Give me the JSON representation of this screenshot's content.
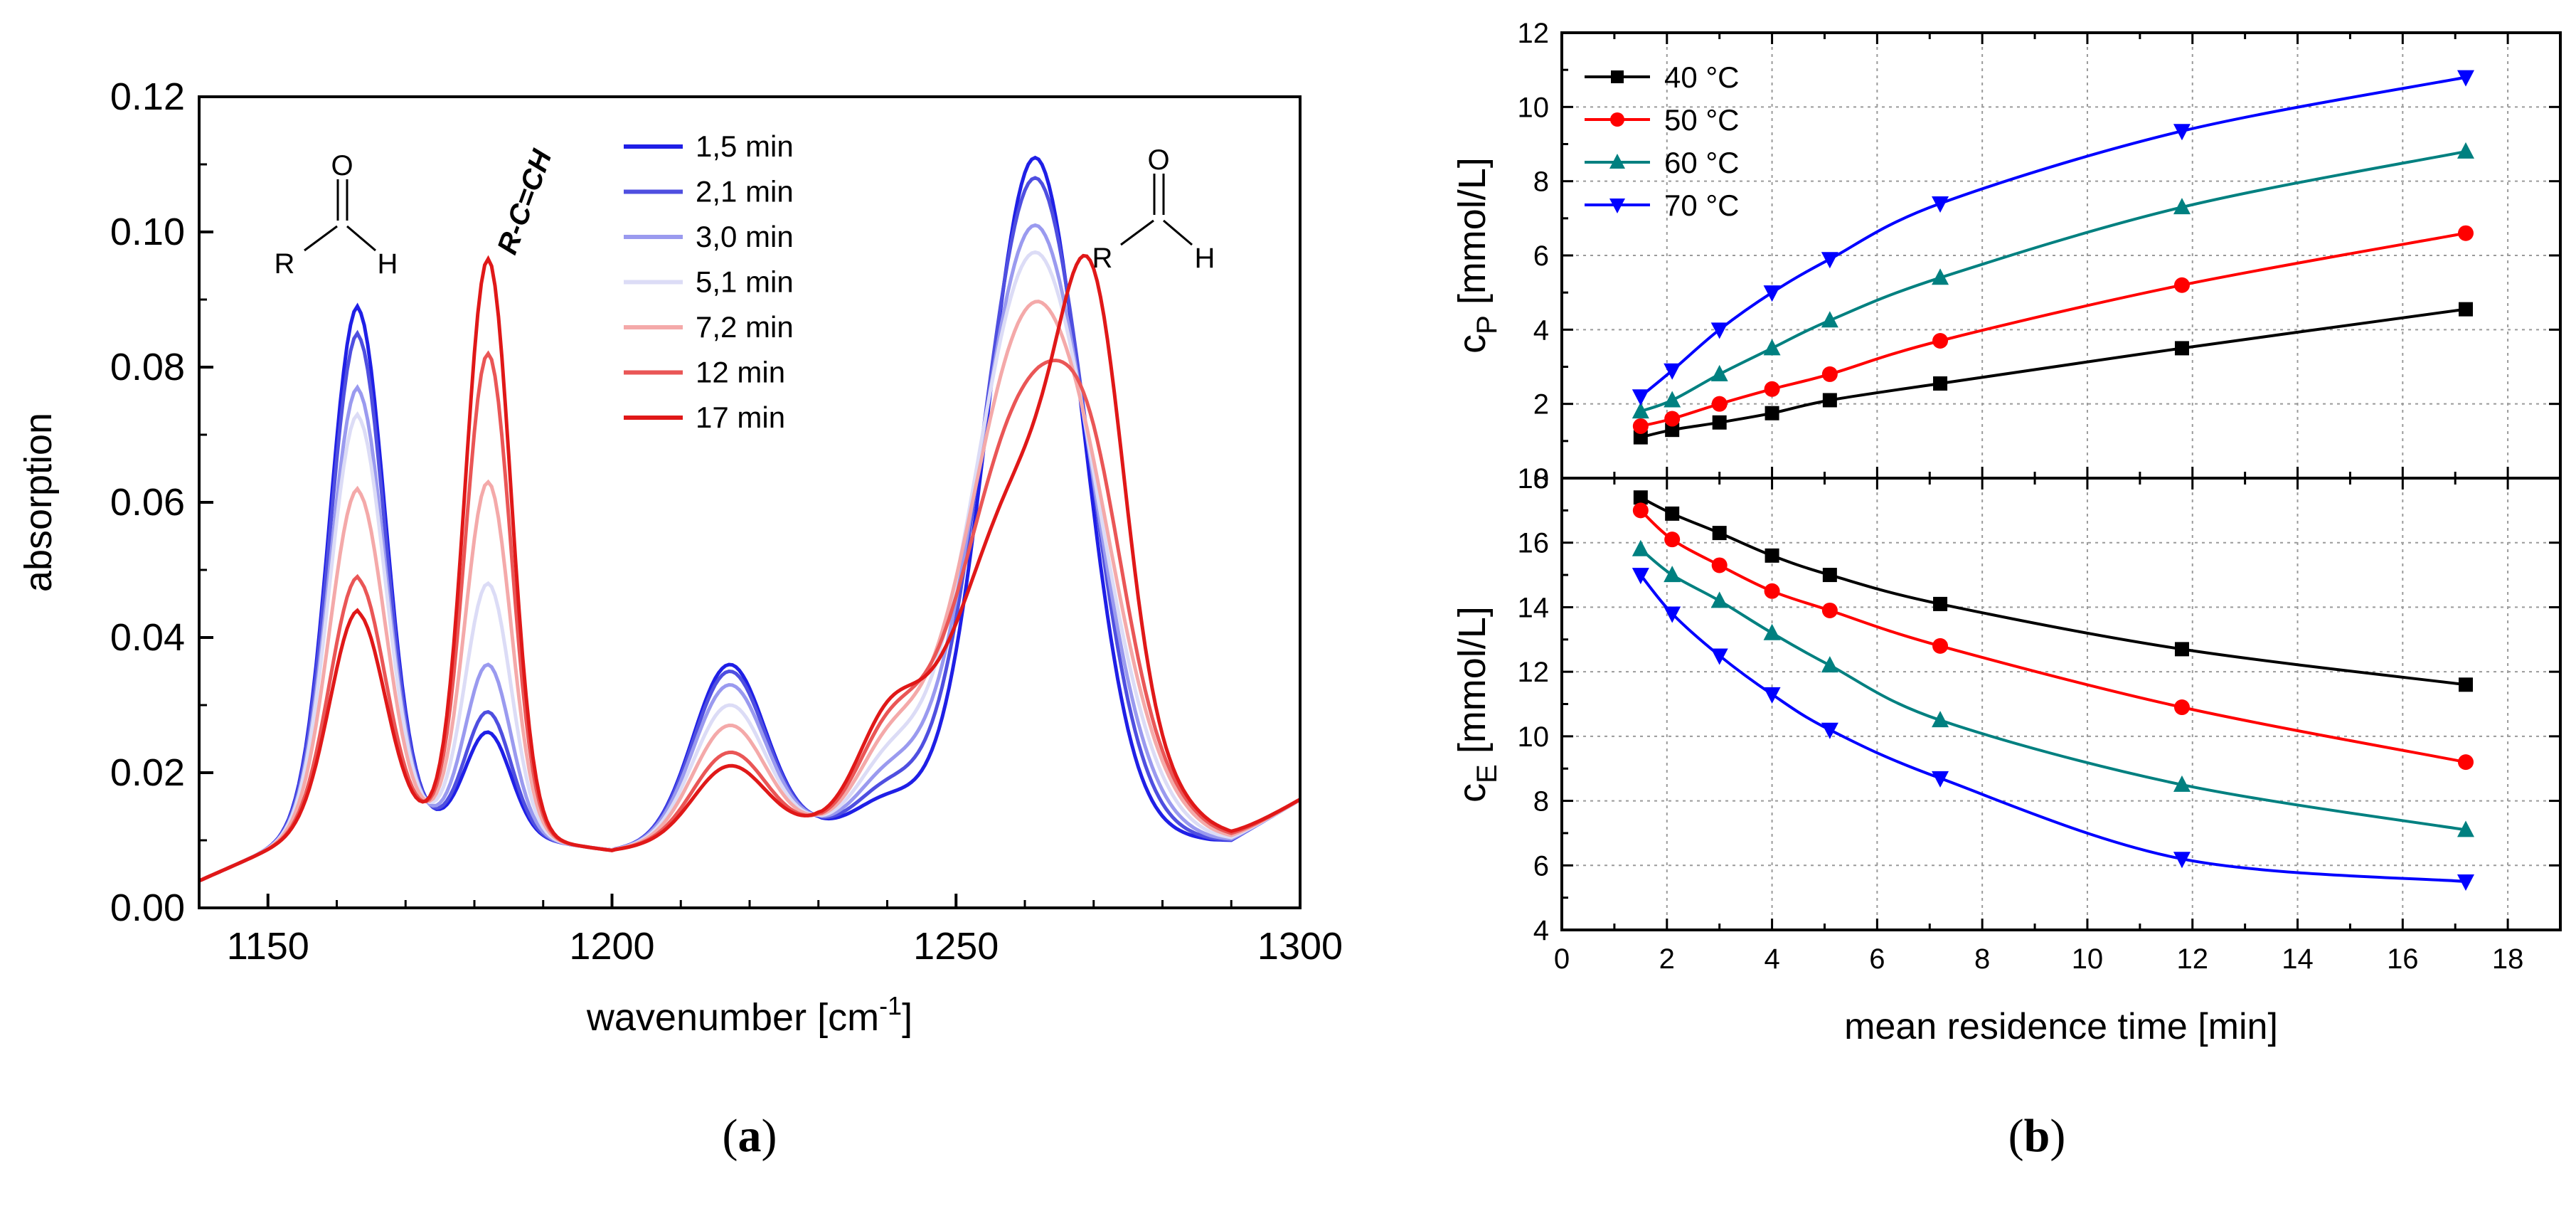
{
  "panel_labels": {
    "a": "(a)",
    "a_letter": "a",
    "b": "(b)",
    "b_letter": "b"
  },
  "chart_data": [
    {
      "id": "a",
      "type": "line",
      "xlabel": "wavenumber [cm",
      "xlabel_sup": "-1",
      "xlabel_suffix": "]",
      "ylabel": "absorption",
      "xlim": [
        1140,
        1300
      ],
      "ylim": [
        0.0,
        0.12
      ],
      "xticks": [
        "1150",
        "1200",
        "1250",
        "1300"
      ],
      "xtick_values": [
        1150,
        1200,
        1250,
        1300
      ],
      "yticks": [
        "0.00",
        "0.02",
        "0.04",
        "0.06",
        "0.08",
        "0.10",
        "0.12"
      ],
      "ytick_values": [
        0.0,
        0.02,
        0.04,
        0.06,
        0.08,
        0.1,
        0.12
      ],
      "annotations": {
        "alkene_label": "R-C=CH",
        "aldehyde_O": "O",
        "aldehyde_R": "R",
        "aldehyde_H": "H",
        "aldehyde_C": "C"
      },
      "series": [
        {
          "name": "1,5 min",
          "color": "#1f1fe6",
          "peaks": {
            "p1163": 0.089,
            "p1182": 0.026,
            "p1217": 0.036,
            "p1262": 0.111,
            "p1270": 0.0
          }
        },
        {
          "name": "2,1 min",
          "color": "#4f4fe0",
          "peaks": {
            "p1163": 0.085,
            "p1182": 0.029,
            "p1217": 0.035,
            "p1262": 0.108,
            "p1270": 0.0
          }
        },
        {
          "name": "3,0 min",
          "color": "#9a9aef",
          "peaks": {
            "p1163": 0.077,
            "p1182": 0.036,
            "p1217": 0.033,
            "p1262": 0.101,
            "p1270": 0.0
          }
        },
        {
          "name": "5,1 min",
          "color": "#dcdcf6",
          "peaks": {
            "p1163": 0.073,
            "p1182": 0.048,
            "p1217": 0.03,
            "p1262": 0.097,
            "p1270": 0.0
          }
        },
        {
          "name": "7,2 min",
          "color": "#f4a9a9",
          "peaks": {
            "p1163": 0.062,
            "p1182": 0.063,
            "p1217": 0.027,
            "p1262": 0.089,
            "p1270": 0.004
          }
        },
        {
          "name": "12 min",
          "color": "#ea5656",
          "peaks": {
            "p1163": 0.049,
            "p1182": 0.082,
            "p1217": 0.023,
            "p1262": 0.077,
            "p1270": 0.015
          }
        },
        {
          "name": "17 min",
          "color": "#e01818",
          "peaks": {
            "p1163": 0.044,
            "p1182": 0.096,
            "p1217": 0.021,
            "p1262": 0.065,
            "p1270": 0.045
          }
        }
      ]
    },
    {
      "id": "b-top",
      "type": "line",
      "xlabel": "",
      "ylabel": "c",
      "ylabel_sub": "P",
      "ylabel_suffix": " [mmol/L]",
      "xlim": [
        0,
        19
      ],
      "ylim": [
        0,
        12
      ],
      "yticks": [
        "0",
        "2",
        "4",
        "6",
        "8",
        "10",
        "12"
      ],
      "ytick_values": [
        0,
        2,
        4,
        6,
        8,
        10,
        12
      ],
      "x": [
        1.5,
        2.1,
        3.0,
        4.0,
        5.1,
        7.2,
        11.8,
        17.2
      ],
      "series": [
        {
          "name": "40 °C",
          "color": "#000000",
          "marker": "square",
          "values": [
            1.1,
            1.3,
            1.5,
            1.75,
            2.1,
            2.55,
            3.5,
            4.55
          ]
        },
        {
          "name": "50 °C",
          "color": "#ff0000",
          "marker": "circle",
          "values": [
            1.4,
            1.6,
            2.0,
            2.4,
            2.8,
            3.7,
            5.2,
            6.6
          ]
        },
        {
          "name": "60 °C",
          "color": "#008080",
          "marker": "triangle-up",
          "values": [
            1.8,
            2.1,
            2.8,
            3.5,
            4.25,
            5.4,
            7.3,
            8.8
          ]
        },
        {
          "name": "70 °C",
          "color": "#0000ff",
          "marker": "triangle-down",
          "values": [
            2.2,
            2.9,
            4.0,
            5.0,
            5.9,
            7.4,
            9.35,
            10.8
          ]
        }
      ]
    },
    {
      "id": "b-bottom",
      "type": "line",
      "xlabel": "mean residence time [min]",
      "ylabel": "c",
      "ylabel_sub": "E",
      "ylabel_suffix": " [mmol/L]",
      "xlim": [
        0,
        19
      ],
      "ylim": [
        4,
        18
      ],
      "xticks": [
        "0",
        "2",
        "4",
        "6",
        "8",
        "10",
        "12",
        "14",
        "16",
        "18"
      ],
      "xtick_values": [
        0,
        2,
        4,
        6,
        8,
        10,
        12,
        14,
        16,
        18
      ],
      "yticks": [
        "4",
        "6",
        "8",
        "10",
        "12",
        "14",
        "16",
        "18"
      ],
      "ytick_values": [
        4,
        6,
        8,
        10,
        12,
        14,
        16,
        18
      ],
      "x": [
        1.5,
        2.1,
        3.0,
        4.0,
        5.1,
        7.2,
        11.8,
        17.2
      ],
      "series": [
        {
          "name": "40 °C",
          "color": "#000000",
          "marker": "square",
          "values": [
            17.4,
            16.9,
            16.3,
            15.6,
            15.0,
            14.1,
            12.7,
            11.6
          ]
        },
        {
          "name": "50 °C",
          "color": "#ff0000",
          "marker": "circle",
          "values": [
            17.0,
            16.1,
            15.3,
            14.5,
            13.9,
            12.8,
            10.9,
            9.2
          ]
        },
        {
          "name": "60 °C",
          "color": "#008080",
          "marker": "triangle-up",
          "values": [
            15.8,
            15.0,
            14.2,
            13.2,
            12.2,
            10.5,
            8.5,
            7.1
          ]
        },
        {
          "name": "70 °C",
          "color": "#0000ff",
          "marker": "triangle-down",
          "values": [
            15.0,
            13.8,
            12.5,
            11.3,
            10.2,
            8.7,
            6.2,
            5.5
          ]
        }
      ]
    }
  ]
}
